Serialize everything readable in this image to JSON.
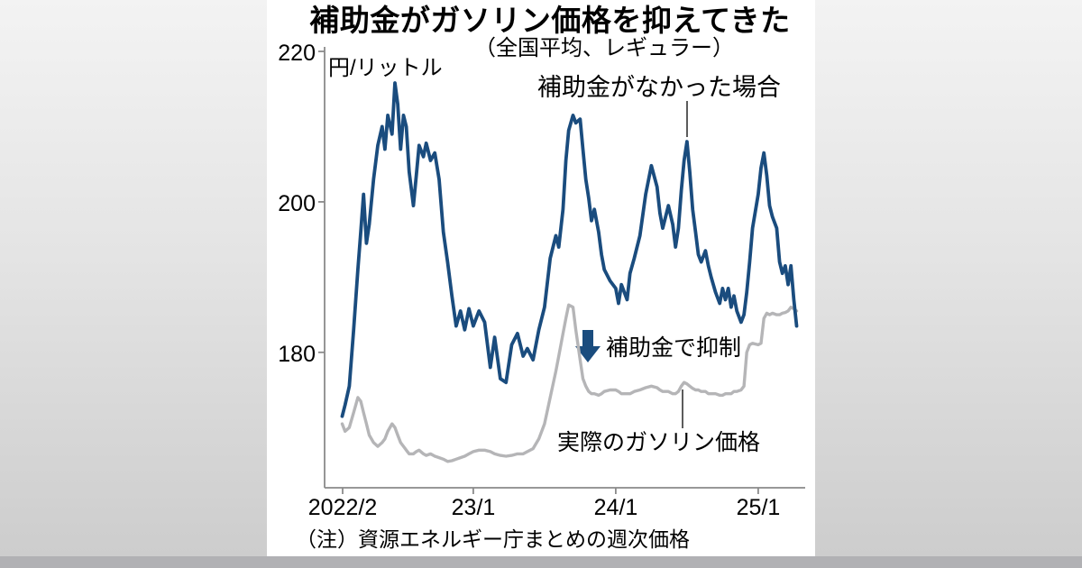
{
  "note": "（注）資源エネルギー庁まとめの週次価格",
  "colors": {
    "line_no_subsidy": "#1a4c7e",
    "line_actual": "#b5b5b7",
    "axis": "#8a8a8a",
    "arrow": "#1a4c7e"
  },
  "chart_data": {
    "type": "line",
    "title": "補助金がガソリン価格を抑えてきた",
    "subtitle": "（全国平均、レギュラー）",
    "unit_label": "円/リットル",
    "xlabel": "",
    "ylabel": "円/リットル",
    "grid": false,
    "legend": "inline-annotations",
    "ylim": [
      162,
      220
    ],
    "xlim": [
      2021.96,
      2025.41
    ],
    "y_ticks": [
      220,
      200,
      180
    ],
    "x_ticks": [
      {
        "t": 2022.083,
        "label": "2022/2"
      },
      {
        "t": 2023.0,
        "label": "23/1"
      },
      {
        "t": 2024.0,
        "label": "24/1"
      },
      {
        "t": 2025.0,
        "label": "25/1"
      }
    ],
    "x": [
      2022.08,
      2022.1,
      2022.13,
      2022.16,
      2022.19,
      2022.21,
      2022.23,
      2022.25,
      2022.27,
      2022.3,
      2022.33,
      2022.36,
      2022.38,
      2022.4,
      2022.43,
      2022.45,
      2022.47,
      2022.49,
      2022.51,
      2022.53,
      2022.55,
      2022.58,
      2022.6,
      2022.62,
      2022.65,
      2022.67,
      2022.7,
      2022.73,
      2022.76,
      2022.79,
      2022.82,
      2022.85,
      2022.88,
      2022.91,
      2022.94,
      2022.97,
      2023.0,
      2023.04,
      2023.08,
      2023.12,
      2023.15,
      2023.19,
      2023.23,
      2023.27,
      2023.31,
      2023.35,
      2023.38,
      2023.42,
      2023.46,
      2023.5,
      2023.54,
      2023.58,
      2023.6,
      2023.63,
      2023.65,
      2023.67,
      2023.7,
      2023.72,
      2023.75,
      2023.77,
      2023.79,
      2023.81,
      2023.83,
      2023.85,
      2023.88,
      2023.9,
      2023.92,
      2023.96,
      2024.0,
      2024.02,
      2024.04,
      2024.08,
      2024.1,
      2024.13,
      2024.17,
      2024.21,
      2024.25,
      2024.29,
      2024.31,
      2024.33,
      2024.37,
      2024.4,
      2024.42,
      2024.44,
      2024.46,
      2024.48,
      2024.5,
      2024.52,
      2024.54,
      2024.56,
      2024.58,
      2024.6,
      2024.63,
      2024.65,
      2024.67,
      2024.7,
      2024.73,
      2024.75,
      2024.77,
      2024.79,
      2024.81,
      2024.83,
      2024.85,
      2024.88,
      2024.9,
      2024.92,
      2024.94,
      2024.96,
      2025.0,
      2025.02,
      2025.04,
      2025.06,
      2025.08,
      2025.1,
      2025.13,
      2025.15,
      2025.17,
      2025.19,
      2025.21,
      2025.23,
      2025.25,
      2025.27
    ],
    "series": [
      {
        "name": "補助金がなかった場合",
        "color": "#1a4c7e",
        "values": [
          171.5,
          173,
          175.5,
          183,
          191,
          196,
          201,
          194.5,
          197,
          203,
          207.5,
          210,
          207,
          211.5,
          209,
          215.8,
          213,
          207,
          211.5,
          210,
          204,
          199.5,
          203.5,
          207.5,
          206,
          207.8,
          205.5,
          206.5,
          203,
          196,
          192,
          187.5,
          183.5,
          185.5,
          183,
          185.8,
          183.5,
          185.5,
          184,
          178,
          182,
          176.5,
          176,
          181,
          182.5,
          179.5,
          180.5,
          179,
          183,
          186,
          192.5,
          195.5,
          194,
          199,
          205.5,
          209.5,
          211.5,
          210.5,
          211,
          207,
          203,
          200.5,
          197.5,
          199,
          196,
          193,
          191,
          189.5,
          188.5,
          186.5,
          189,
          187,
          190.5,
          192.5,
          195.5,
          201,
          204.8,
          202,
          198.5,
          196.5,
          199.5,
          197,
          194,
          196.5,
          201.5,
          205.5,
          208,
          204,
          199,
          196,
          193,
          192,
          193.5,
          191.5,
          190,
          188,
          186.5,
          188.5,
          187,
          188.5,
          186,
          187.5,
          185.5,
          184,
          185,
          188,
          192,
          196.5,
          201,
          204.5,
          206.5,
          203.5,
          199.5,
          198,
          196.5,
          192,
          190.5,
          191.5,
          189,
          191.5,
          187,
          183.5
        ]
      },
      {
        "name": "実際のガソリン価格",
        "color": "#b5b5b7",
        "values": [
          170.5,
          169.5,
          170,
          172,
          174,
          173.5,
          172,
          170.5,
          169,
          168,
          167.5,
          168,
          168.5,
          169.5,
          170.5,
          170,
          169,
          168,
          167.5,
          167,
          166.5,
          166.5,
          166.8,
          167,
          166.5,
          166.3,
          166.5,
          166.2,
          166,
          165.8,
          165.5,
          165.6,
          165.8,
          166,
          166.2,
          166.5,
          166.8,
          167,
          167,
          166.8,
          166.5,
          166.3,
          166.2,
          166.3,
          166.5,
          166.5,
          166.8,
          167.2,
          168.5,
          170.5,
          174,
          177.5,
          179.5,
          182.5,
          184.5,
          186.3,
          186,
          183,
          179,
          176.5,
          175.5,
          174.8,
          174.5,
          174.5,
          174.3,
          174.5,
          174.8,
          175,
          175,
          174.8,
          174.5,
          174.5,
          174.5,
          174.8,
          175,
          175.3,
          175.5,
          175.3,
          175,
          174.8,
          174.8,
          174.5,
          174.5,
          174.8,
          175.5,
          176,
          175.8,
          175.5,
          175.2,
          175,
          175,
          174.8,
          174.8,
          174.5,
          174.5,
          174.5,
          174.3,
          174.3,
          174.5,
          174.5,
          174.5,
          174.8,
          174.8,
          175,
          175.5,
          180,
          181,
          181.2,
          181,
          181.2,
          184.5,
          185.2,
          185,
          185.2,
          185,
          185,
          185.2,
          185.3,
          185.5,
          186,
          185.8,
          185.5
        ]
      }
    ],
    "annotations": {
      "no_subsidy_label": "補助金がなかった場合",
      "actual_label": "実際のガソリン価格",
      "suppress_label": "補助金で抑制"
    }
  }
}
